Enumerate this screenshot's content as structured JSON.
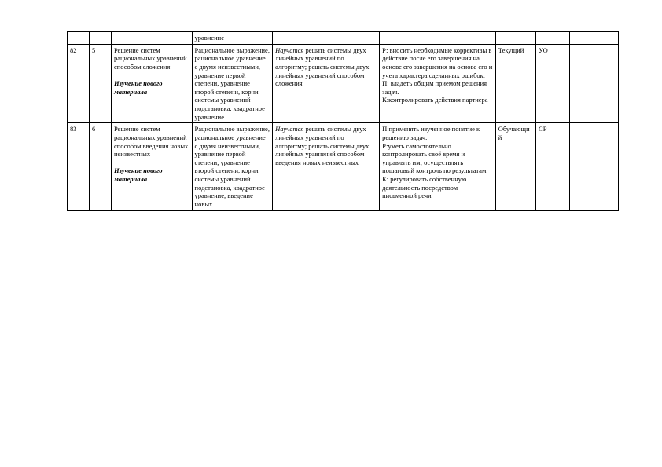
{
  "header_row": {
    "c1": "",
    "c2": "",
    "c3": "",
    "c4": "уравнение",
    "c5": "",
    "c6": "",
    "c7": "",
    "c8": "",
    "c9": "",
    "c10": ""
  },
  "rows": [
    {
      "c1": "82",
      "c2": "5",
      "c3_main": "Решение систем рациональных уравнений способом сложения",
      "c3_italic": "Изучение нового материала",
      "c4": "Рациональное выражение, рациональное уравнение с двумя неизвестными, уравнение первой степени, уравнение второй степени, корни системы уравнений подстановка, квадратное уравнение",
      "c5_prefix": "Научатся",
      "c5_body": " решать системы двух линейных уравнений по алгоритму; решать системы двух линейных уравнений способом сложения",
      "c6": "Р: вносить необходимые коррективы в действие после его завершения на основе его завершения на основе его и учета характера сделанных ошибок.\nП: владеть общим приемом решения задач.\nК:контролировать действия партнера",
      "c7": "Текущий",
      "c8": "УО",
      "c9": "",
      "c10": ""
    },
    {
      "c1": "83",
      "c2": "6",
      "c3_main": "Решение систем рациональных уравнений способом введения новых неизвестных",
      "c3_italic": "Изучение нового материала",
      "c4": "Рациональное выражение, рациональное уравнение с двумя неизвестными, уравнение первой степени, уравнение второй степени, корни системы уравнений подстановка, квадратное уравнение, введение новых",
      "c5_prefix": "Научатся",
      "c5_body": " решать системы двух линейных уравнений по алгоритму; решать системы двух линейных уравнений способом введения новых неизвестных",
      "c6": "П:применять изученное понятие к решению задач.\nР:уметь самостоятельно контролировать своё время и управлять им; осуществлять пошаговый контроль по результатам.\nК: регулировать собственную деятельность посредством письменной речи",
      "c7": "Обучающий",
      "c8": "СР",
      "c9": "",
      "c10": ""
    }
  ]
}
